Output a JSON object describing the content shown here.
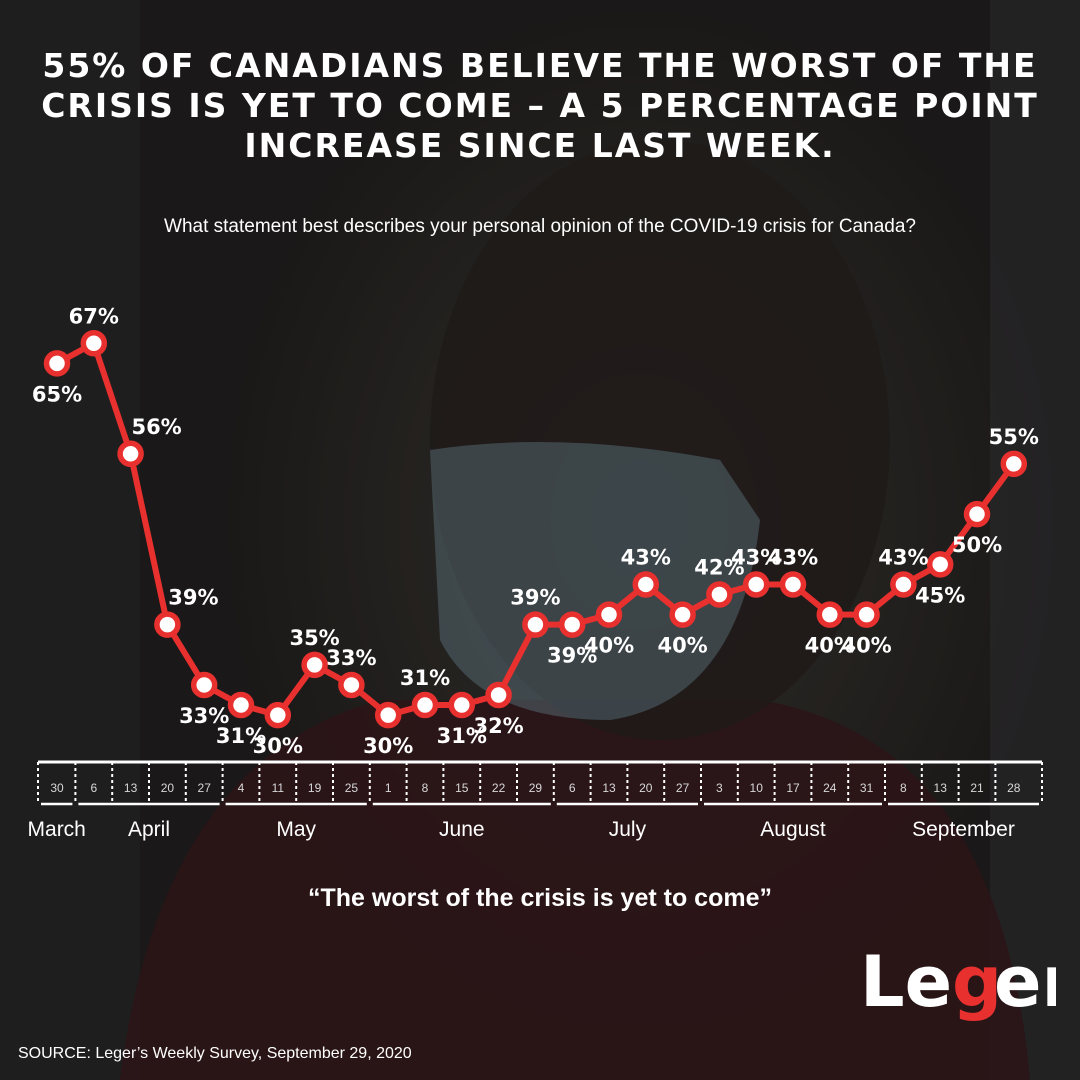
{
  "headline": "55% OF CANADIANS BELIEVE THE WORST OF THE CRISIS IS YET TO COME – A 5 PERCENTAGE POINT INCREASE SINCE LAST WEEK.",
  "question": "What statement best describes your personal opinion of the COVID-19 crisis for Canada?",
  "quote": "“The worst of the crisis is yet to come”",
  "source": {
    "label": "SOURCE:",
    "text": " Leger’s Weekly Survey, September 29, 2020"
  },
  "logo": {
    "text": "Leger"
  },
  "colors": {
    "line": "#e8302f",
    "text": "#ffffff",
    "marker_fill": "#ffffff",
    "brand": "#e8302f"
  },
  "chart_data": {
    "type": "line",
    "title": "",
    "xlabel": "",
    "ylabel": "",
    "ylim": [
      25,
      70
    ],
    "grid": false,
    "legend": "none",
    "x": [
      "30",
      "6",
      "13",
      "20",
      "27",
      "4",
      "11",
      "19",
      "25",
      "1",
      "8",
      "15",
      "22",
      "29",
      "6",
      "13",
      "20",
      "27",
      "3",
      "10",
      "17",
      "24",
      "31",
      "8",
      "13",
      "21",
      "28"
    ],
    "months": [
      {
        "name": "March",
        "start": 0,
        "end": 0
      },
      {
        "name": "April",
        "start": 1,
        "end": 4
      },
      {
        "name": "May",
        "start": 5,
        "end": 8
      },
      {
        "name": "June",
        "start": 9,
        "end": 13
      },
      {
        "name": "July",
        "start": 14,
        "end": 17
      },
      {
        "name": "August",
        "start": 18,
        "end": 22
      },
      {
        "name": "September",
        "start": 23,
        "end": 26
      }
    ],
    "series": [
      {
        "values": [
          65,
          67,
          56,
          39,
          33,
          31,
          30,
          35,
          33,
          30,
          31,
          31,
          32,
          39,
          39,
          40,
          43,
          40,
          42,
          43,
          43,
          40,
          40,
          43,
          45,
          50,
          55
        ],
        "labels": [
          "65%",
          "67%",
          "56%",
          "39%",
          "33%",
          "31%",
          "30%",
          "35%",
          "33%",
          "30%",
          "31%",
          "31%",
          "32%",
          "39%",
          "39%",
          "40%",
          "43%",
          "40%",
          "42%",
          "43%",
          "43%",
          "40%",
          "40%",
          "43%",
          "45%",
          "50%",
          "55%"
        ]
      }
    ]
  }
}
